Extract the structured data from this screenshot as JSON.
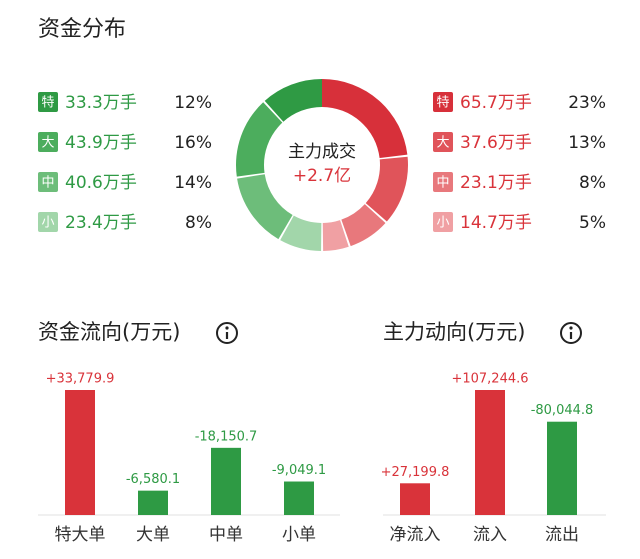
{
  "distribution": {
    "title": "资金分布",
    "center_label": "主力成交",
    "center_value": "+2.7亿",
    "outflow": {
      "tags": [
        "特",
        "大",
        "中",
        "小"
      ],
      "amounts": [
        33.3,
        43.9,
        40.6,
        23.4
      ],
      "amount_labels": [
        "33.3万手",
        "43.9万手",
        "40.6万手",
        "23.4万手"
      ],
      "percents": [
        12,
        16,
        14,
        8
      ],
      "percent_labels": [
        "12%",
        "16%",
        "14%",
        "8%"
      ],
      "colors": [
        "#2f9a44",
        "#4cad5d",
        "#6dbd7a",
        "#a2d6aa"
      ]
    },
    "inflow": {
      "tags": [
        "特",
        "大",
        "中",
        "小"
      ],
      "amounts": [
        65.7,
        37.6,
        23.1,
        14.7
      ],
      "amount_labels": [
        "65.7万手",
        "37.6万手",
        "23.1万手",
        "14.7万手"
      ],
      "percents": [
        23,
        13,
        8,
        5
      ],
      "percent_labels": [
        "23%",
        "13%",
        "8%",
        "5%"
      ],
      "colors": [
        "#d7303a",
        "#e0545a",
        "#e8787c",
        "#f0a0a3"
      ]
    }
  },
  "flow": {
    "title": "资金流向(万元)",
    "categories": [
      "特大单",
      "大单",
      "中单",
      "小单"
    ],
    "values": [
      33779.9,
      -6580.1,
      -18150.7,
      -9049.1
    ],
    "value_labels": [
      "+33,779.9",
      "-6,580.1",
      "-18,150.7",
      "-9,049.1"
    ]
  },
  "main": {
    "title": "主力动向(万元)",
    "categories": [
      "净流入",
      "流入",
      "流出"
    ],
    "values": [
      27199.8,
      107244.6,
      -80044.8
    ],
    "value_labels": [
      "+27,199.8",
      "+107,244.6",
      "-80,044.8"
    ]
  },
  "colors": {
    "up": "#d9333a",
    "down": "#2e9a44"
  }
}
